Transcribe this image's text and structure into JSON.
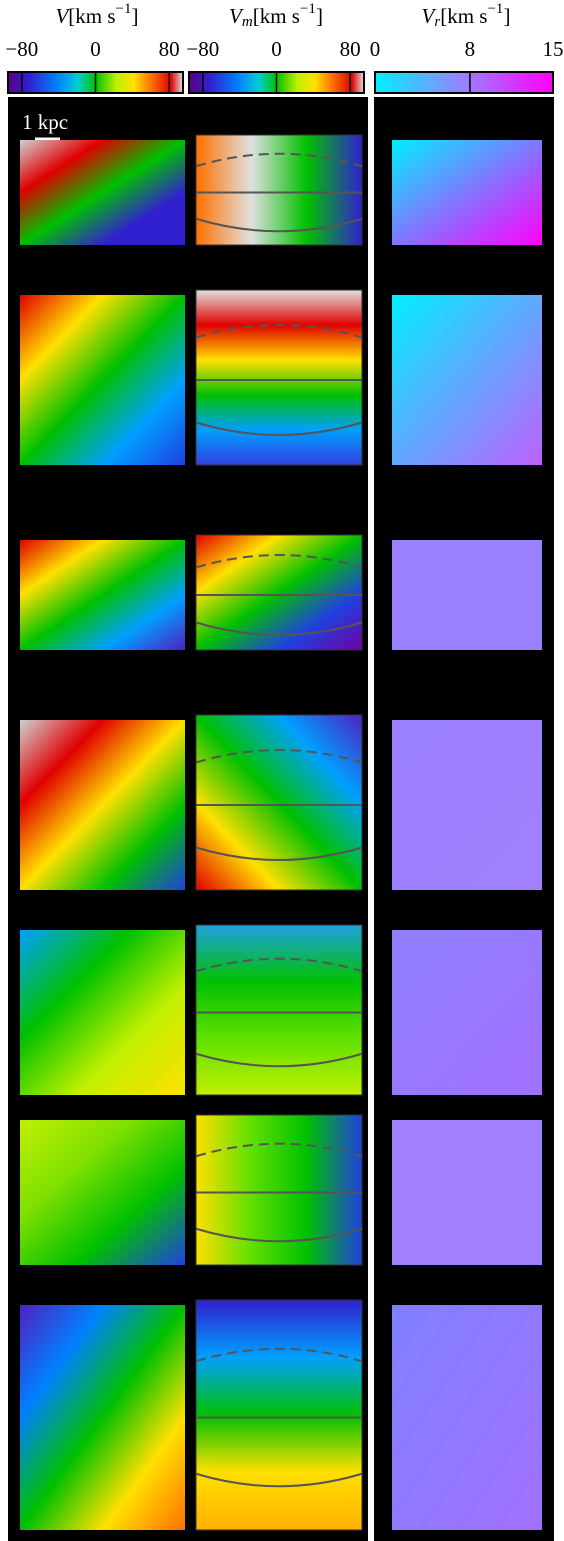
{
  "colorbars": [
    {
      "symbol": "V",
      "unit": "[km s",
      "exponent": "−1",
      "suffix": "]",
      "lim": [
        -95,
        95
      ],
      "ticks": [
        {
          "value": -80,
          "label": "−80"
        },
        0,
        80
      ]
    },
    {
      "symbol": "V",
      "subscript": "m",
      "unit": "[km s",
      "exponent": "−1",
      "suffix": "]",
      "lim": [
        -95,
        95
      ],
      "ticks": [
        {
          "value": -80,
          "label": "−80"
        },
        0,
        80
      ]
    },
    {
      "symbol": "V",
      "subscript": "r",
      "unit": "[km s",
      "exponent": "−1",
      "suffix": "]",
      "lim": [
        0,
        15
      ],
      "ticks": [
        0,
        8,
        15
      ]
    }
  ],
  "scale_bar": "1 kpc"
}
